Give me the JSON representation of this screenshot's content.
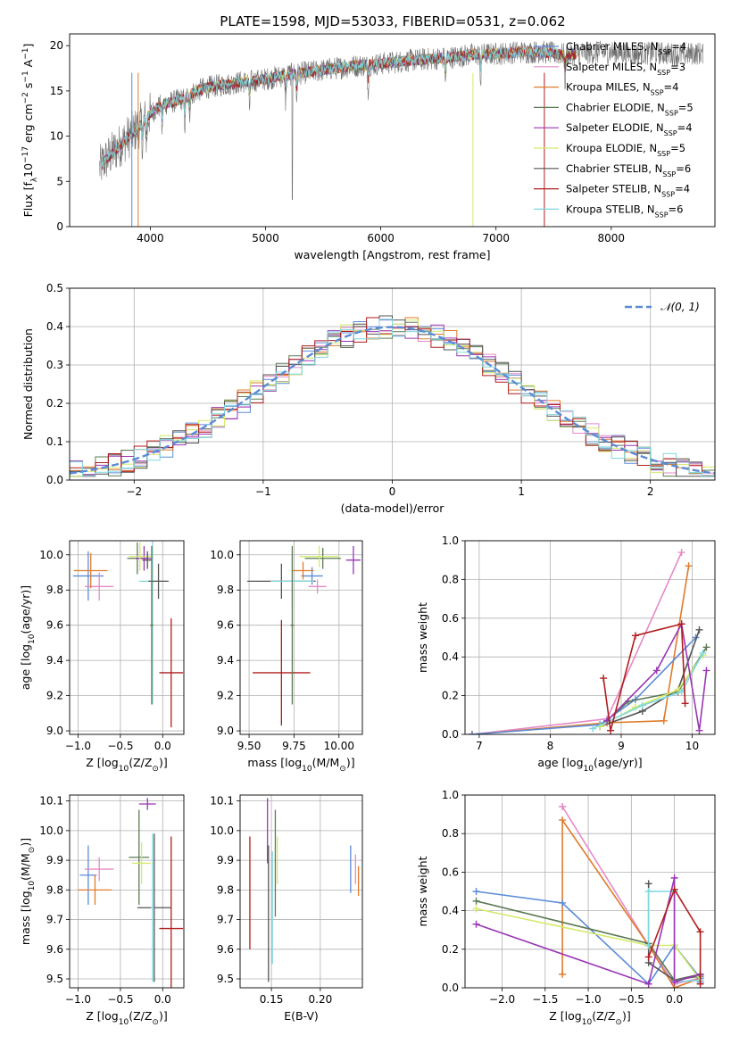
{
  "figure_title": "PLATE=1598, MJD=53033, FIBERID=0531, z=0.062",
  "colors": {
    "chabrier_miles": "#5b8bd6",
    "salpeter_miles": "#e58ac8",
    "kroupa_miles": "#e07b2a",
    "chabrier_elodie": "#5d7a55",
    "salpeter_elodie": "#9a36b4",
    "kroupa_elodie": "#d2ea6a",
    "chabrier_stelib": "#555555",
    "salpeter_stelib": "#b01e1e",
    "kroupa_stelib": "#7fd8e0",
    "gauss": "#5b8bd6"
  },
  "chart_data": [
    {
      "id": "spectrum",
      "type": "line",
      "title": "PLATE=1598, MJD=53033, FIBERID=0531, z=0.062",
      "xlabel": "wavelength [Angstrom, rest frame]",
      "ylabel": "Flux [f",
      "ylabel_sub": "λ",
      "ylabel_rest": "10",
      "ylabel_sup": "−17",
      "ylabel_tail": " erg cm",
      "ylabel_sup2": "−2",
      "ylabel_tail2": " s",
      "ylabel_sup3": "−1",
      "ylabel_tail3": " A",
      "ylabel_sup4": "−1",
      "ylabel_end": "]",
      "xlim": [
        3300,
        8900
      ],
      "ylim": [
        0,
        21.3
      ],
      "xticks": [
        4000,
        5000,
        6000,
        7000,
        8000
      ],
      "yticks": [
        0,
        5,
        10,
        15,
        20
      ],
      "continuum": {
        "x": [
          3560,
          3600,
          3700,
          3800,
          3900,
          4000,
          4100,
          4200,
          4300,
          4400,
          4500,
          4600,
          4700,
          4800,
          4900,
          5000,
          5200,
          5400,
          5600,
          5800,
          6000,
          6200,
          6400,
          6600,
          6800,
          7000,
          7200,
          7400,
          7600,
          7800,
          8000,
          8200,
          8400,
          8600,
          8800
        ],
        "y": [
          6.5,
          7.2,
          8.5,
          9.8,
          11.0,
          12.5,
          13.5,
          13.8,
          14.2,
          15.0,
          15.4,
          15.6,
          15.8,
          16.0,
          16.1,
          16.3,
          16.8,
          17.1,
          17.5,
          17.8,
          18.0,
          18.3,
          18.5,
          18.7,
          19.0,
          19.1,
          19.3,
          19.3,
          19.0,
          19.2,
          19.3,
          19.1,
          19.2,
          19.0,
          19.2
        ]
      },
      "models_end": 7700,
      "legend": [
        {
          "label": "Chabrier MILES, N",
          "sub": "SSP",
          "val": "=4",
          "color": "#5b8bd6"
        },
        {
          "label": "Salpeter MILES, N",
          "sub": "SSP",
          "val": "=3",
          "color": "#e58ac8"
        },
        {
          "label": "Kroupa MILES, N",
          "sub": "SSP",
          "val": "=4",
          "color": "#e07b2a"
        },
        {
          "label": "Chabrier ELODIE, N",
          "sub": "SSP",
          "val": "=5",
          "color": "#5d7a55"
        },
        {
          "label": "Salpeter ELODIE, N",
          "sub": "SSP",
          "val": "=4",
          "color": "#9a36b4"
        },
        {
          "label": "Kroupa ELODIE, N",
          "sub": "SSP",
          "val": "=5",
          "color": "#d2ea6a"
        },
        {
          "label": "Chabrier STELIB, N",
          "sub": "SSP",
          "val": "=6",
          "color": "#555555"
        },
        {
          "label": "Salpeter STELIB, N",
          "sub": "SSP",
          "val": "=4",
          "color": "#b01e1e"
        },
        {
          "label": "Kroupa STELIB, N",
          "sub": "SSP",
          "val": "=6",
          "color": "#7fd8e0"
        }
      ],
      "legend_position": "upper right"
    },
    {
      "id": "residuals",
      "type": "bar",
      "xlabel": "(data-model)/error",
      "ylabel": "Normed distribution",
      "xlim": [
        -2.5,
        2.5
      ],
      "ylim": [
        0,
        0.5
      ],
      "xticks": [
        -2,
        -1,
        0,
        1,
        2
      ],
      "yticks": [
        0.0,
        0.1,
        0.2,
        0.3,
        0.4,
        0.5
      ],
      "bin_width": 0.1,
      "legend_label": "𝒩(0, 1)",
      "legend_position": "upper right",
      "grid": true
    },
    {
      "id": "age_vs_Z",
      "type": "scatter",
      "xlabel": "Z [log",
      "xlabel_sub": "10",
      "xlabel_rest": "(Z/Z",
      "xlabel_sub2": "⊙",
      "xlabel_end": ")]",
      "ylabel": "age  [log",
      "ylabel_sub": "10",
      "ylabel_rest": "(age/yr)]",
      "xlim": [
        -1.1,
        0.25
      ],
      "ylim": [
        8.98,
        10.08
      ],
      "xticks": [
        -1.0,
        -0.5,
        0.0
      ],
      "yticks": [
        9.0,
        9.2,
        9.4,
        9.6,
        9.8,
        10.0
      ],
      "points": [
        {
          "x": -0.88,
          "y": 9.88,
          "xerr": 0.18,
          "yerr": 0.14,
          "color": "#5b8bd6"
        },
        {
          "x": -0.75,
          "y": 9.82,
          "xerr": 0.17,
          "yerr": 0.08,
          "color": "#e58ac8"
        },
        {
          "x": -0.85,
          "y": 9.91,
          "xerr": 0.2,
          "yerr": 0.1,
          "color": "#e07b2a"
        },
        {
          "x": -0.3,
          "y": 9.98,
          "xerr": 0.12,
          "yerr": 0.09,
          "color": "#5d7a55"
        },
        {
          "x": -0.22,
          "y": 9.98,
          "xerr": 0.1,
          "yerr": 0.07,
          "color": "#9a36b4"
        },
        {
          "x": -0.27,
          "y": 9.99,
          "xerr": 0.13,
          "yerr": 0.08,
          "color": "#d2ea6a"
        },
        {
          "x": -0.18,
          "y": 9.97,
          "xerr": 0.06,
          "yerr": 0.05,
          "color": "#555555"
        },
        {
          "x": 0.1,
          "y": 9.33,
          "xerr": 0.14,
          "yerr": 0.31,
          "color": "#b01e1e"
        },
        {
          "x": -0.12,
          "y": 9.85,
          "xerr": 0.16,
          "yerr": 0.7,
          "color": "#7fd8e0"
        },
        {
          "x": -0.05,
          "y": 9.85,
          "xerr": 0.12,
          "yerr": 0.1,
          "color": "#555555"
        },
        {
          "x": -0.13,
          "y": 9.6,
          "xerr": 0.02,
          "yerr": 0.45,
          "color": "#5d7a55"
        }
      ]
    },
    {
      "id": "age_vs_mass",
      "type": "scatter",
      "xlabel": "mass [log",
      "xlabel_sub": "10",
      "xlabel_rest": "(M/M",
      "xlabel_sub2": "⊙",
      "xlabel_end": ")]",
      "xlim": [
        9.45,
        10.13
      ],
      "ylim": [
        8.98,
        10.08
      ],
      "xticks": [
        9.5,
        9.75,
        10.0
      ],
      "yticks": [
        9.0,
        9.2,
        9.4,
        9.6,
        9.8,
        10.0
      ],
      "points": [
        {
          "x": 9.85,
          "y": 9.88,
          "xerr": 0.06,
          "yerr": 0.05,
          "color": "#5b8bd6"
        },
        {
          "x": 9.88,
          "y": 9.82,
          "xerr": 0.05,
          "yerr": 0.04,
          "color": "#e58ac8"
        },
        {
          "x": 9.8,
          "y": 9.91,
          "xerr": 0.06,
          "yerr": 0.05,
          "color": "#e07b2a"
        },
        {
          "x": 9.91,
          "y": 9.98,
          "xerr": 0.1,
          "yerr": 0.06,
          "color": "#5d7a55"
        },
        {
          "x": 10.08,
          "y": 9.97,
          "xerr": 0.04,
          "yerr": 0.08,
          "color": "#9a36b4"
        },
        {
          "x": 9.89,
          "y": 9.99,
          "xerr": 0.11,
          "yerr": 0.06,
          "color": "#d2ea6a"
        },
        {
          "x": 9.68,
          "y": 9.85,
          "xerr": 0.19,
          "yerr": 0.1,
          "color": "#555555"
        },
        {
          "x": 9.68,
          "y": 9.33,
          "xerr": 0.16,
          "yerr": 0.3,
          "color": "#b01e1e"
        },
        {
          "x": 9.74,
          "y": 9.85,
          "xerr": 0.12,
          "yerr": 0.15,
          "color": "#7fd8e0"
        },
        {
          "x": 9.74,
          "y": 9.6,
          "xerr": 0.01,
          "yerr": 0.45,
          "color": "#5d7a55"
        }
      ]
    },
    {
      "id": "weight_vs_age",
      "type": "line",
      "xlabel": "age  [log",
      "xlabel_sub": "10",
      "xlabel_rest": "(age/yr)]",
      "ylabel": "mass weight",
      "xlim": [
        6.8,
        10.32
      ],
      "ylim": [
        0,
        1.0
      ],
      "xticks": [
        7,
        8,
        9,
        10
      ],
      "yticks": [
        0.0,
        0.2,
        0.4,
        0.6,
        0.8,
        1.0
      ],
      "grid": true,
      "series": [
        {
          "color": "#e58ac8",
          "x": [
            6.9,
            8.8,
            9.85
          ],
          "y": [
            0.0,
            0.08,
            0.94
          ]
        },
        {
          "color": "#e07b2a",
          "x": [
            6.9,
            8.8,
            9.6,
            9.95
          ],
          "y": [
            0.0,
            0.06,
            0.07,
            0.87
          ]
        },
        {
          "color": "#5b8bd6",
          "x": [
            6.9,
            8.7,
            9.2,
            10.05
          ],
          "y": [
            0.0,
            0.05,
            0.18,
            0.5
          ]
        },
        {
          "color": "#555555",
          "x": [
            8.7,
            9.3,
            9.8,
            10.1
          ],
          "y": [
            0.04,
            0.12,
            0.23,
            0.54
          ]
        },
        {
          "color": "#5d7a55",
          "x": [
            8.7,
            9.1,
            9.8,
            10.2
          ],
          "y": [
            0.04,
            0.17,
            0.22,
            0.45
          ]
        },
        {
          "color": "#d2ea6a",
          "x": [
            8.7,
            9.2,
            9.8,
            10.15
          ],
          "y": [
            0.04,
            0.14,
            0.23,
            0.41
          ]
        },
        {
          "color": "#7fd8e0",
          "x": [
            8.6,
            9.3,
            9.85,
            10.15
          ],
          "y": [
            0.03,
            0.15,
            0.22,
            0.42
          ]
        },
        {
          "color": "#9a36b4",
          "x": [
            8.8,
            9.5,
            9.85,
            10.1,
            10.2
          ],
          "y": [
            0.07,
            0.33,
            0.57,
            0.02,
            0.33
          ]
        },
        {
          "color": "#b01e1e",
          "x": [
            8.75,
            8.85,
            9.2,
            9.85,
            9.9
          ],
          "y": [
            0.29,
            0.02,
            0.51,
            0.57,
            0.16
          ]
        }
      ]
    },
    {
      "id": "mass_vs_Z",
      "type": "scatter",
      "xlabel": "Z [log",
      "xlabel_sub": "10",
      "xlabel_rest": "(Z/Z",
      "xlabel_sub2": "⊙",
      "xlabel_end": ")]",
      "ylabel": "mass [log",
      "ylabel_sub": "10",
      "ylabel_rest": "(M/M",
      "ylabel_sub2": "⊙",
      "ylabel_end": ")]",
      "xlim": [
        -1.1,
        0.25
      ],
      "ylim": [
        9.47,
        10.12
      ],
      "xticks": [
        -1.0,
        -0.5,
        0.0
      ],
      "yticks": [
        9.5,
        9.6,
        9.7,
        9.8,
        9.9,
        10.0,
        10.1
      ],
      "points": [
        {
          "x": -0.88,
          "y": 9.85,
          "xerr": 0.1,
          "yerr": 0.1,
          "color": "#5b8bd6"
        },
        {
          "x": -0.75,
          "y": 9.87,
          "xerr": 0.17,
          "yerr": 0.04,
          "color": "#e58ac8"
        },
        {
          "x": -0.8,
          "y": 9.8,
          "xerr": 0.2,
          "yerr": 0.05,
          "color": "#e07b2a"
        },
        {
          "x": -0.28,
          "y": 9.91,
          "xerr": 0.12,
          "yerr": 0.16,
          "color": "#5d7a55"
        },
        {
          "x": -0.18,
          "y": 10.09,
          "xerr": 0.1,
          "yerr": 0.02,
          "color": "#9a36b4"
        },
        {
          "x": -0.25,
          "y": 9.89,
          "xerr": 0.11,
          "yerr": 0.07,
          "color": "#d2ea6a"
        },
        {
          "x": -0.1,
          "y": 9.74,
          "xerr": 0.2,
          "yerr": 0.25,
          "color": "#555555"
        },
        {
          "x": 0.1,
          "y": 9.67,
          "xerr": 0.14,
          "yerr": 0.31,
          "color": "#b01e1e"
        },
        {
          "x": -0.12,
          "y": 9.74,
          "xerr": 0.02,
          "yerr": 0.25,
          "color": "#7fd8e0"
        }
      ]
    },
    {
      "id": "mass_vs_ebv",
      "type": "scatter",
      "xlabel": "E(B-V)",
      "xlim": [
        0.118,
        0.243
      ],
      "ylim": [
        9.47,
        10.12
      ],
      "xticks": [
        0.15,
        0.2
      ],
      "yticks": [
        9.5,
        9.6,
        9.7,
        9.8,
        9.9,
        10.0,
        10.1
      ],
      "points": [
        {
          "x": 0.231,
          "y": 9.87,
          "xerr": 0.0,
          "yerr": 0.08,
          "color": "#5b8bd6"
        },
        {
          "x": 0.236,
          "y": 9.87,
          "xerr": 0.0,
          "yerr": 0.05,
          "color": "#e58ac8"
        },
        {
          "x": 0.239,
          "y": 9.83,
          "xerr": 0.0,
          "yerr": 0.05,
          "color": "#e07b2a"
        },
        {
          "x": 0.154,
          "y": 9.89,
          "xerr": 0.0,
          "yerr": 0.18,
          "color": "#5d7a55"
        },
        {
          "x": 0.146,
          "y": 10.0,
          "xerr": 0.0,
          "yerr": 0.11,
          "color": "#9a36b4"
        },
        {
          "x": 0.156,
          "y": 9.9,
          "xerr": 0.0,
          "yerr": 0.08,
          "color": "#d2ea6a"
        },
        {
          "x": 0.147,
          "y": 9.72,
          "xerr": 0.0,
          "yerr": 0.23,
          "color": "#555555"
        },
        {
          "x": 0.128,
          "y": 9.79,
          "xerr": 0.0,
          "yerr": 0.19,
          "color": "#b01e1e"
        },
        {
          "x": 0.151,
          "y": 9.74,
          "xerr": 0.0,
          "yerr": 0.19,
          "color": "#7fd8e0"
        }
      ]
    },
    {
      "id": "weight_vs_Z",
      "type": "line",
      "xlabel": "Z [log",
      "xlabel_sub": "10",
      "xlabel_rest": "(Z/Z",
      "xlabel_sub2": "⊙",
      "xlabel_end": ")]",
      "ylabel": "mass weight",
      "xlim": [
        -2.43,
        0.47
      ],
      "ylim": [
        0,
        1.0
      ],
      "xticks": [
        -2.0,
        -1.5,
        -1.0,
        -0.5,
        0.0
      ],
      "yticks": [
        0.0,
        0.2,
        0.4,
        0.6,
        0.8,
        1.0
      ],
      "grid": true,
      "series": [
        {
          "color": "#e58ac8",
          "x": [
            -1.3,
            -1.3,
            -0.3,
            0.0,
            0.3
          ],
          "y": [
            0.94,
            0.94,
            0.22,
            0.02,
            0.05
          ]
        },
        {
          "color": "#e07b2a",
          "x": [
            -1.3,
            -1.3,
            -0.3,
            0.0,
            0.3
          ],
          "y": [
            0.07,
            0.87,
            0.22,
            0.0,
            0.05
          ]
        },
        {
          "color": "#5b8bd6",
          "x": [
            -2.3,
            -1.3,
            -0.3,
            0.0,
            0.3,
            0.3
          ],
          "y": [
            0.5,
            0.44,
            0.02,
            0.22,
            0.05,
            0.03
          ]
        },
        {
          "color": "#555555",
          "x": [
            -0.3,
            -0.3,
            0.0,
            0.3
          ],
          "y": [
            0.54,
            0.13,
            0.04,
            0.07
          ]
        },
        {
          "color": "#5d7a55",
          "x": [
            -2.3,
            -0.3,
            0.0,
            0.3
          ],
          "y": [
            0.45,
            0.23,
            0.04,
            0.06
          ]
        },
        {
          "color": "#d2ea6a",
          "x": [
            -2.3,
            -0.3,
            0.0,
            0.3
          ],
          "y": [
            0.41,
            0.22,
            0.22,
            0.04
          ]
        },
        {
          "color": "#7fd8e0",
          "x": [
            -0.3,
            -0.3,
            0.0,
            0.0,
            0.3
          ],
          "y": [
            0.22,
            0.5,
            0.5,
            0.03,
            0.04
          ]
        },
        {
          "color": "#9a36b4",
          "x": [
            -2.3,
            -0.3,
            0.0,
            0.0,
            0.3
          ],
          "y": [
            0.33,
            0.02,
            0.57,
            0.03,
            0.07
          ]
        },
        {
          "color": "#b01e1e",
          "x": [
            -0.3,
            0.0,
            0.3,
            0.3
          ],
          "y": [
            0.16,
            0.51,
            0.29,
            0.02
          ]
        }
      ]
    }
  ]
}
